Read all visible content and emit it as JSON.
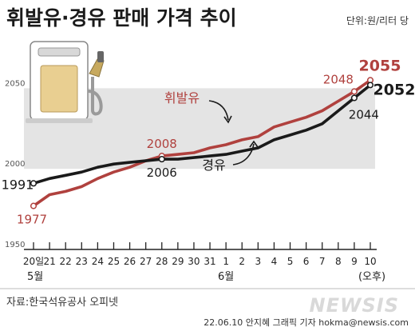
{
  "header": {
    "title": "휘발유·경유 판매 가격 추이",
    "unit": "단위:원/리터 당"
  },
  "footer": {
    "source": "자료:한국석유공사 오피넷",
    "credit": "22.06.10 안지혜 그래픽 기자 hokma@newsis.com",
    "watermark": "NEWSIS"
  },
  "colors": {
    "gasoline": "#b0413e",
    "diesel": "#1a1a1a",
    "band": "#e4e4e4",
    "axis": "#222222"
  },
  "chart_data": {
    "type": "line",
    "x": [
      "20일",
      "21",
      "22",
      "23",
      "24",
      "25",
      "26",
      "27",
      "28",
      "29",
      "30",
      "31",
      "1",
      "2",
      "3",
      "4",
      "5",
      "6",
      "7",
      "8",
      "9",
      "10"
    ],
    "month_labels": [
      {
        "label": "5월",
        "index": 0
      },
      {
        "label": "6월",
        "index": 12
      }
    ],
    "x_suffix": "(오후)",
    "ylim": [
      1950,
      2075
    ],
    "yticks": [
      1950,
      2000,
      2050
    ],
    "band": [
      2000,
      2050
    ],
    "series": [
      {
        "name": "휘발유",
        "color_key": "gasoline",
        "values": [
          1977,
          1984,
          1986,
          1989,
          1994,
          1998,
          2001,
          2005,
          2008,
          2009,
          2010,
          2013,
          2015,
          2018,
          2020,
          2026,
          2029,
          2032,
          2036,
          2042,
          2048,
          2055
        ]
      },
      {
        "name": "경유",
        "color_key": "diesel",
        "values": [
          1991,
          1994,
          1996,
          1998,
          2001,
          2003,
          2004,
          2005,
          2006,
          2006,
          2007,
          2008,
          2009,
          2011,
          2013,
          2018,
          2021,
          2024,
          2028,
          2036,
          2044,
          2052
        ]
      }
    ],
    "point_labels": [
      {
        "series": 0,
        "index": 0,
        "text": "1977"
      },
      {
        "series": 0,
        "index": 8,
        "text": "2008"
      },
      {
        "series": 0,
        "index": 20,
        "text": "2048"
      },
      {
        "series": 0,
        "index": 21,
        "text": "2055"
      },
      {
        "series": 1,
        "index": 0,
        "text": "1991"
      },
      {
        "series": 1,
        "index": 8,
        "text": "2006"
      },
      {
        "series": 1,
        "index": 20,
        "text": "2044"
      },
      {
        "series": 1,
        "index": 21,
        "text": "2052"
      }
    ],
    "series_labels": [
      {
        "series": 0,
        "text": "휘발유"
      },
      {
        "series": 1,
        "text": "경유"
      }
    ]
  }
}
